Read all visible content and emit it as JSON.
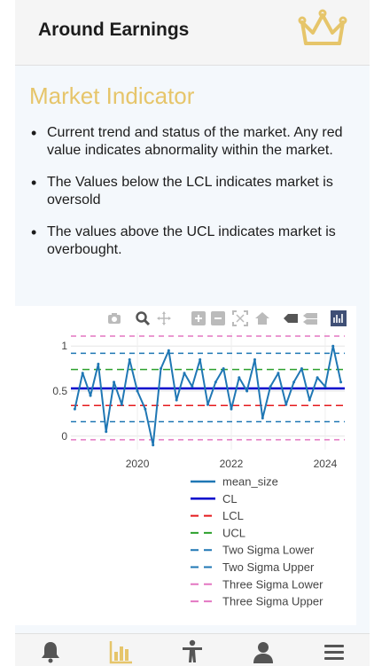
{
  "header": {
    "title": "Around Earnings"
  },
  "section": {
    "title": "Market Indicator",
    "bullets": [
      "Current trend and status of the market. Any red value indicates abnormality within the market.",
      "The Values below the LCL indicates market is oversold",
      "The values above the UCL indicates market is overbought."
    ]
  },
  "toolbar_icons": [
    "camera-icon",
    "zoom-icon",
    "pan-icon",
    "zoom-in-icon",
    "zoom-out-icon",
    "autoscale-icon",
    "home-icon",
    "spike-lines-icon",
    "compare-hover-icon",
    "plotly-logo-icon"
  ],
  "chart_data": {
    "type": "line",
    "x_ticks": [
      "2020",
      "2022",
      "2024"
    ],
    "y_ticks": [
      "0",
      "0.5",
      "1"
    ],
    "xlim": [
      "2018-08",
      "2024-06"
    ],
    "ylim": [
      -0.15,
      1.15
    ],
    "series": [
      {
        "name": "mean_size",
        "style": "solid",
        "color": "#1f77b4",
        "x": [
          "2018-09",
          "2018-11",
          "2019-01",
          "2019-03",
          "2019-05",
          "2019-07",
          "2019-09",
          "2019-11",
          "2020-01",
          "2020-03",
          "2020-05",
          "2020-07",
          "2020-09",
          "2020-11",
          "2021-01",
          "2021-03",
          "2021-05",
          "2021-07",
          "2021-09",
          "2021-11",
          "2022-01",
          "2022-03",
          "2022-05",
          "2022-07",
          "2022-09",
          "2022-11",
          "2023-01",
          "2023-03",
          "2023-05",
          "2023-07",
          "2023-09",
          "2023-11",
          "2024-01",
          "2024-03",
          "2024-05"
        ],
        "values": [
          0.3,
          0.7,
          0.45,
          0.8,
          0.05,
          0.6,
          0.35,
          0.85,
          0.5,
          0.3,
          -0.1,
          0.75,
          0.95,
          0.4,
          0.7,
          0.55,
          0.85,
          0.35,
          0.6,
          0.75,
          0.3,
          0.65,
          0.5,
          0.85,
          0.2,
          0.55,
          0.7,
          0.35,
          0.6,
          0.75,
          0.4,
          0.65,
          0.55,
          1.0,
          0.6
        ]
      },
      {
        "name": "CL",
        "style": "solid",
        "color": "#0000cc",
        "value": 0.53
      },
      {
        "name": "LCL",
        "style": "dash",
        "color": "#e41a1c",
        "value": 0.34
      },
      {
        "name": "UCL",
        "style": "dash",
        "color": "#2ca02c",
        "value": 0.74
      },
      {
        "name": "Two Sigma Lower",
        "style": "dash",
        "color": "#1f77b4",
        "value": 0.16
      },
      {
        "name": "Two Sigma Upper",
        "style": "dash",
        "color": "#1f77b4",
        "value": 0.92
      },
      {
        "name": "Three Sigma Lower",
        "style": "dash",
        "color": "#e377c2",
        "value": -0.04
      },
      {
        "name": "Three Sigma Upper",
        "style": "dash",
        "color": "#e377c2",
        "value": 1.11
      }
    ]
  },
  "tabbar": {
    "tabs": [
      "bell-icon",
      "chart-icon",
      "person-icon",
      "user-icon",
      "menu-icon"
    ],
    "active": 1
  },
  "colors": {
    "accent": "#e6c56a",
    "text": "#1c1c1c"
  }
}
